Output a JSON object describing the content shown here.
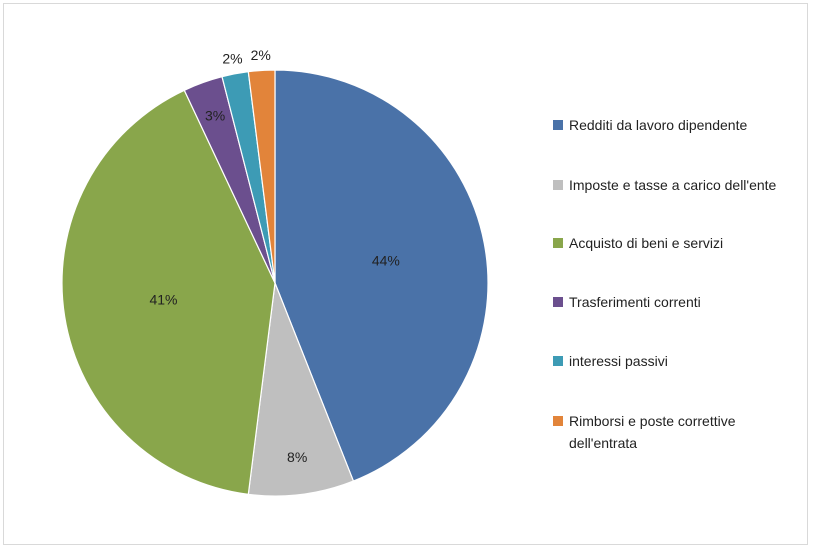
{
  "chart_data": {
    "type": "pie",
    "categories": [
      "Redditi da lavoro dipendente",
      "Imposte e tasse a carico dell'ente",
      "Acquisto di beni e servizi",
      "Trasferimenti correnti",
      "interessi passivi",
      "Rimborsi e poste correttive dell'entrata"
    ],
    "values": [
      44,
      8,
      41,
      3,
      2,
      2
    ],
    "colors": [
      "#4a72a8",
      "#bfbfbf",
      "#89a64b",
      "#6b4f8e",
      "#3d9bb5",
      "#e2843a"
    ],
    "legend": "right"
  }
}
